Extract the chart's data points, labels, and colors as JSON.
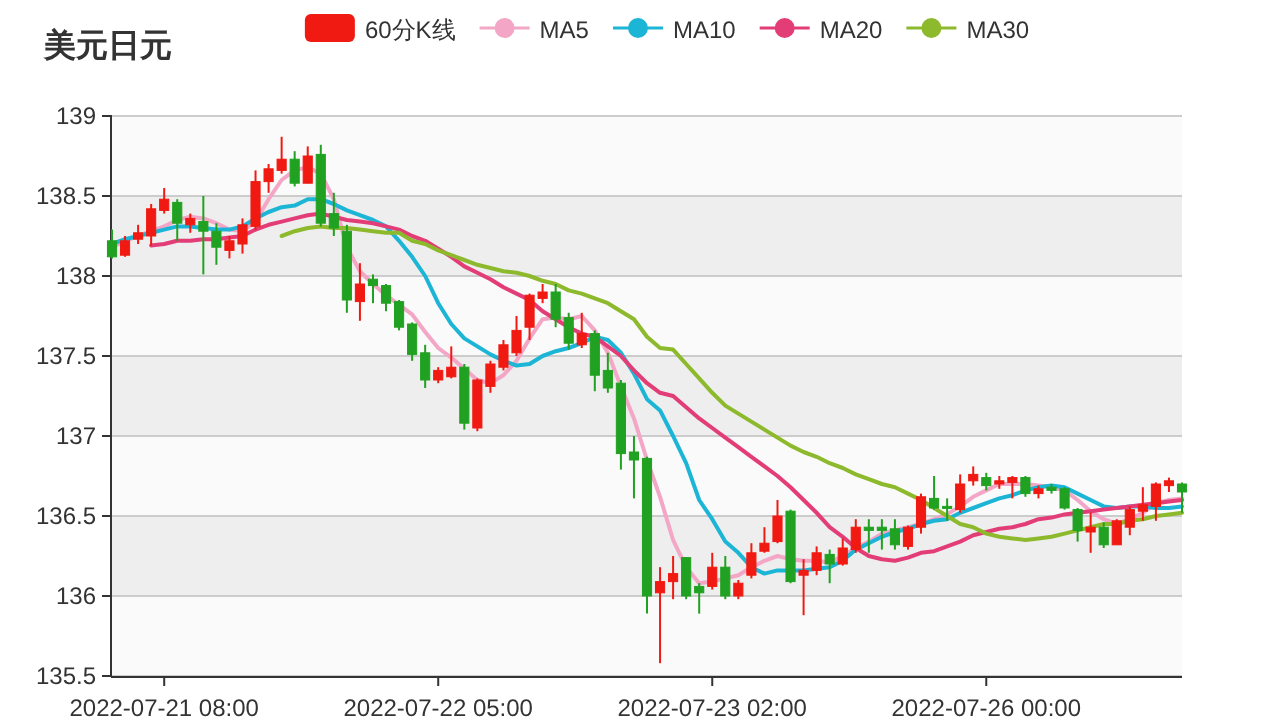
{
  "chart_data": {
    "type": "candlestick",
    "title": "美元日元",
    "categories": [
      null,
      null,
      null,
      null,
      "2022-07-21 08:00",
      null,
      null,
      null,
      null,
      null,
      null,
      null,
      null,
      null,
      null,
      null,
      null,
      null,
      null,
      null,
      null,
      null,
      null,
      null,
      null,
      "2022-07-22 05:00",
      null,
      null,
      null,
      null,
      null,
      null,
      null,
      null,
      null,
      null,
      null,
      null,
      null,
      null,
      null,
      null,
      null,
      null,
      null,
      null,
      "2022-07-23 02:00",
      null,
      null,
      null,
      null,
      null,
      null,
      null,
      null,
      null,
      null,
      null,
      null,
      null,
      null,
      null,
      null,
      null,
      null,
      null,
      null,
      "2022-07-26 00:00",
      null,
      null,
      null,
      null,
      null,
      null,
      null,
      null,
      null,
      null,
      null,
      null,
      null,
      null,
      null
    ],
    "ylim": [
      135.5,
      139
    ],
    "yticks": [
      135.5,
      136,
      136.5,
      137,
      137.5,
      138,
      138.5,
      139
    ],
    "grid": "y",
    "legend": "top",
    "series": [
      {
        "name": "60分K线",
        "color": "#f01a12",
        "colors": [
          "#21a121",
          "#f01a12",
          "#f01a12",
          "#f01a12",
          "#f01a12",
          "#21a121",
          "#f01a12",
          "#21a121",
          "#21a121",
          "#f01a12",
          "#f01a12",
          "#f01a12",
          "#f01a12",
          "#f01a12",
          "#21a121",
          "#f01a12",
          "#21a121",
          "#21a121",
          "#21a121",
          "#f01a12",
          "#21a121",
          "#21a121",
          "#21a121",
          "#21a121",
          "#21a121",
          "#f01a12",
          "#f01a12",
          "#21a121",
          "#f01a12",
          "#f01a12",
          "#f01a12",
          "#f01a12",
          "#f01a12",
          "#f01a12",
          "#21a121",
          "#21a121",
          "#f01a12",
          "#21a121",
          "#21a121",
          "#21a121",
          "#21a121",
          "#21a121",
          "#f01a12",
          "#f01a12",
          "#21a121",
          "#21a121",
          "#f01a12",
          "#21a121",
          "#f01a12",
          "#f01a12",
          "#f01a12",
          "#f01a12",
          "#21a121",
          "#f01a12",
          "#f01a12",
          "#21a121",
          "#f01a12",
          "#f01a12",
          "#21a121",
          "#21a121",
          "#21a121",
          "#f01a12",
          "#f01a12",
          "#21a121",
          "#21a121",
          "#f01a12",
          "#f01a12",
          "#21a121",
          "#f01a12",
          "#f01a12",
          "#21a121",
          "#f01a12",
          "#21a121",
          "#21a121",
          "#21a121",
          "#f01a12",
          "#21a121",
          "#f01a12",
          "#f01a12",
          "#f01a12",
          "#f01a12",
          "#f01a12",
          "#21a121"
        ],
        "ohlc": [
          [
            138.22,
            138.29,
            138.11,
            138.12
          ],
          [
            138.13,
            138.25,
            138.12,
            138.22
          ],
          [
            138.23,
            138.32,
            138.2,
            138.27
          ],
          [
            138.25,
            138.45,
            138.19,
            138.42
          ],
          [
            138.41,
            138.55,
            138.39,
            138.48
          ],
          [
            138.46,
            138.48,
            138.22,
            138.33
          ],
          [
            138.32,
            138.39,
            138.27,
            138.36
          ],
          [
            138.34,
            138.5,
            138.01,
            138.28
          ],
          [
            138.28,
            138.33,
            138.07,
            138.18
          ],
          [
            138.16,
            138.25,
            138.11,
            138.22
          ],
          [
            138.2,
            138.36,
            138.14,
            138.32
          ],
          [
            138.31,
            138.66,
            138.29,
            138.59
          ],
          [
            138.59,
            138.7,
            138.52,
            138.67
          ],
          [
            138.66,
            138.87,
            138.64,
            138.73
          ],
          [
            138.73,
            138.78,
            138.56,
            138.58
          ],
          [
            138.58,
            138.81,
            138.58,
            138.75
          ],
          [
            138.76,
            138.82,
            138.31,
            138.33
          ],
          [
            138.39,
            138.52,
            138.25,
            138.3
          ],
          [
            138.28,
            138.32,
            137.77,
            137.85
          ],
          [
            137.84,
            138.08,
            137.72,
            137.95
          ],
          [
            137.98,
            138.01,
            137.83,
            137.94
          ],
          [
            137.94,
            137.95,
            137.78,
            137.83
          ],
          [
            137.84,
            137.85,
            137.66,
            137.68
          ],
          [
            137.7,
            137.71,
            137.47,
            137.51
          ],
          [
            137.52,
            137.57,
            137.3,
            137.35
          ],
          [
            137.35,
            137.43,
            137.33,
            137.41
          ],
          [
            137.37,
            137.56,
            137.36,
            137.43
          ],
          [
            137.43,
            137.45,
            137.04,
            137.08
          ],
          [
            137.05,
            137.36,
            137.03,
            137.35
          ],
          [
            137.31,
            137.47,
            137.27,
            137.45
          ],
          [
            137.43,
            137.6,
            137.41,
            137.57
          ],
          [
            137.52,
            137.75,
            137.5,
            137.66
          ],
          [
            137.68,
            137.89,
            137.6,
            137.88
          ],
          [
            137.86,
            137.95,
            137.83,
            137.9
          ],
          [
            137.9,
            137.95,
            137.68,
            137.73
          ],
          [
            137.74,
            137.77,
            137.54,
            137.58
          ],
          [
            137.57,
            137.77,
            137.55,
            137.64
          ],
          [
            137.64,
            137.66,
            137.28,
            137.38
          ],
          [
            137.41,
            137.52,
            137.27,
            137.3
          ],
          [
            137.33,
            137.35,
            136.79,
            136.89
          ],
          [
            136.9,
            137.0,
            136.61,
            136.85
          ],
          [
            136.86,
            136.87,
            135.89,
            136.0
          ],
          [
            136.02,
            136.18,
            135.58,
            136.09
          ],
          [
            136.09,
            136.25,
            135.98,
            136.14
          ],
          [
            136.24,
            136.24,
            135.98,
            136.0
          ],
          [
            136.06,
            136.08,
            135.89,
            136.02
          ],
          [
            136.06,
            136.27,
            136.04,
            136.18
          ],
          [
            136.18,
            136.25,
            135.98,
            136.0
          ],
          [
            136.0,
            136.1,
            135.98,
            136.08
          ],
          [
            136.13,
            136.33,
            136.11,
            136.27
          ],
          [
            136.28,
            136.43,
            136.27,
            136.33
          ],
          [
            136.34,
            136.6,
            136.33,
            136.5
          ],
          [
            136.53,
            136.54,
            136.08,
            136.09
          ],
          [
            136.13,
            136.23,
            135.88,
            136.16
          ],
          [
            136.16,
            136.31,
            136.13,
            136.27
          ],
          [
            136.26,
            136.29,
            136.08,
            136.2
          ],
          [
            136.2,
            136.36,
            136.19,
            136.3
          ],
          [
            136.29,
            136.48,
            136.27,
            136.43
          ],
          [
            136.43,
            136.48,
            136.27,
            136.41
          ],
          [
            136.43,
            136.48,
            136.29,
            136.41
          ],
          [
            136.42,
            136.48,
            136.29,
            136.32
          ],
          [
            136.31,
            136.44,
            136.29,
            136.43
          ],
          [
            136.43,
            136.64,
            136.39,
            136.62
          ],
          [
            136.61,
            136.75,
            136.54,
            136.55
          ],
          [
            136.56,
            136.61,
            136.47,
            136.55
          ],
          [
            136.54,
            136.76,
            136.52,
            136.7
          ],
          [
            136.72,
            136.81,
            136.69,
            136.76
          ],
          [
            136.74,
            136.77,
            136.66,
            136.69
          ],
          [
            136.7,
            136.75,
            136.67,
            136.72
          ],
          [
            136.71,
            136.75,
            136.61,
            136.74
          ],
          [
            136.74,
            136.75,
            136.62,
            136.64
          ],
          [
            136.64,
            136.69,
            136.61,
            136.67
          ],
          [
            136.68,
            136.7,
            136.64,
            136.66
          ],
          [
            136.67,
            136.68,
            136.54,
            136.55
          ],
          [
            136.54,
            136.55,
            136.34,
            136.41
          ],
          [
            136.4,
            136.52,
            136.27,
            136.43
          ],
          [
            136.43,
            136.46,
            136.3,
            136.32
          ],
          [
            136.32,
            136.48,
            136.32,
            136.47
          ],
          [
            136.43,
            136.56,
            136.38,
            136.54
          ],
          [
            136.53,
            136.68,
            136.47,
            136.57
          ],
          [
            136.56,
            136.71,
            136.47,
            136.7
          ],
          [
            136.69,
            136.74,
            136.65,
            136.72
          ],
          [
            136.7,
            136.71,
            136.52,
            136.65
          ]
        ]
      },
      {
        "name": "MA5",
        "type": "line",
        "color": "#f3a6c6",
        "values": [
          138.18,
          138.22,
          138.25,
          138.28,
          138.31,
          138.35,
          138.37,
          138.36,
          138.33,
          138.29,
          138.28,
          138.34,
          138.48,
          138.6,
          138.66,
          138.68,
          138.64,
          138.48,
          138.18,
          138.03,
          137.95,
          137.88,
          137.82,
          137.76,
          137.65,
          137.55,
          137.49,
          137.42,
          137.35,
          137.33,
          137.38,
          137.47,
          137.61,
          137.73,
          137.74,
          137.73,
          137.75,
          137.66,
          137.52,
          137.31,
          137.11,
          136.85,
          136.62,
          136.35,
          136.18,
          136.08,
          136.09,
          136.11,
          136.13,
          136.18,
          136.22,
          136.25,
          136.23,
          136.22,
          136.22,
          136.21,
          136.25,
          136.3,
          136.34,
          136.39,
          136.41,
          136.43,
          136.45,
          136.48,
          136.51,
          136.56,
          136.62,
          136.66,
          136.7,
          136.7,
          136.7,
          136.69,
          136.68,
          136.66,
          136.6,
          136.53,
          136.48,
          136.45,
          136.48,
          136.52,
          136.58,
          136.6,
          136.61
        ]
      },
      {
        "name": "MA10",
        "type": "line",
        "color": "#1cb5d6",
        "values": [
          138.2,
          138.23,
          138.25,
          138.27,
          138.29,
          138.31,
          138.31,
          138.3,
          138.29,
          138.29,
          138.31,
          138.36,
          138.4,
          138.43,
          138.44,
          138.48,
          138.48,
          138.45,
          138.41,
          138.38,
          138.35,
          138.31,
          138.22,
          138.12,
          138.0,
          137.83,
          137.7,
          137.61,
          137.56,
          137.51,
          137.47,
          137.44,
          137.45,
          137.5,
          137.53,
          137.55,
          137.58,
          137.62,
          137.6,
          137.52,
          137.39,
          137.23,
          137.16,
          137.0,
          136.83,
          136.6,
          136.48,
          136.34,
          136.27,
          136.18,
          136.14,
          136.16,
          136.16,
          136.16,
          136.17,
          136.18,
          136.22,
          136.29,
          136.33,
          136.37,
          136.4,
          136.42,
          136.45,
          136.47,
          136.48,
          136.52,
          136.55,
          136.58,
          136.61,
          136.63,
          136.66,
          136.68,
          136.69,
          136.68,
          136.64,
          136.6,
          136.56,
          136.55,
          136.56,
          136.56,
          136.55,
          136.55,
          136.56
        ]
      },
      {
        "name": "MA20",
        "type": "line",
        "color": "#e33d78",
        "values": [
          null,
          null,
          null,
          138.19,
          138.2,
          138.22,
          138.22,
          138.23,
          138.23,
          138.24,
          138.25,
          138.29,
          138.32,
          138.34,
          138.36,
          138.38,
          138.39,
          138.37,
          138.35,
          138.34,
          138.33,
          138.31,
          138.29,
          138.25,
          138.22,
          138.17,
          138.12,
          138.06,
          138.02,
          137.98,
          137.93,
          137.89,
          137.85,
          137.78,
          137.73,
          137.68,
          137.64,
          137.62,
          137.56,
          137.5,
          137.41,
          137.33,
          137.27,
          137.25,
          137.18,
          137.11,
          137.05,
          136.99,
          136.93,
          136.87,
          136.81,
          136.75,
          136.68,
          136.6,
          136.52,
          136.43,
          136.37,
          136.3,
          136.25,
          136.23,
          136.22,
          136.24,
          136.27,
          136.28,
          136.31,
          136.34,
          136.38,
          136.4,
          136.42,
          136.43,
          136.45,
          136.48,
          136.49,
          136.51,
          136.52,
          136.53,
          136.54,
          136.55,
          136.56,
          136.57,
          136.58,
          136.59,
          136.6
        ]
      },
      {
        "name": "MA30",
        "type": "line",
        "color": "#8db92c",
        "values": [
          null,
          null,
          null,
          null,
          null,
          null,
          null,
          null,
          null,
          null,
          null,
          null,
          null,
          138.25,
          138.28,
          138.3,
          138.31,
          138.3,
          138.3,
          138.29,
          138.28,
          138.27,
          138.27,
          138.22,
          138.2,
          138.16,
          138.13,
          138.1,
          138.07,
          138.05,
          138.03,
          138.02,
          138.0,
          137.97,
          137.95,
          137.91,
          137.89,
          137.86,
          137.83,
          137.78,
          137.73,
          137.62,
          137.55,
          137.54,
          137.45,
          137.36,
          137.27,
          137.19,
          137.14,
          137.09,
          137.04,
          136.99,
          136.94,
          136.9,
          136.87,
          136.83,
          136.8,
          136.76,
          136.73,
          136.7,
          136.68,
          136.64,
          136.6,
          136.55,
          136.5,
          136.45,
          136.43,
          136.39,
          136.37,
          136.36,
          136.35,
          136.36,
          136.37,
          136.39,
          136.41,
          136.43,
          136.45,
          136.45,
          136.47,
          136.48,
          136.5,
          136.51,
          136.52
        ]
      }
    ]
  }
}
